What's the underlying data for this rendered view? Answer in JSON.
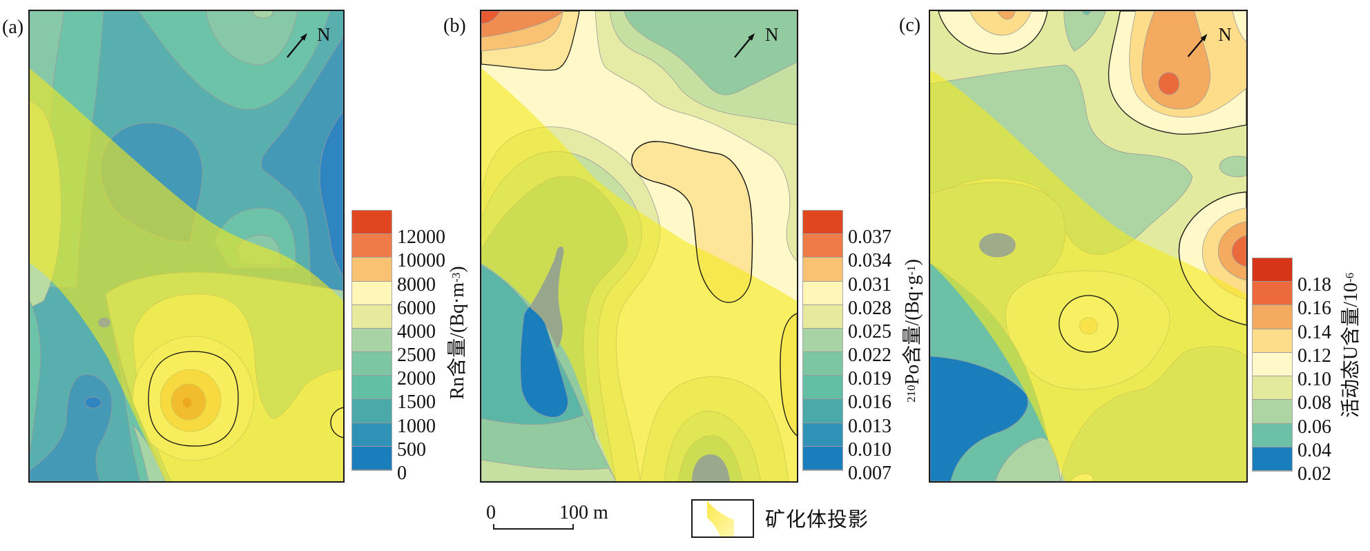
{
  "panels": [
    {
      "id": "a",
      "label": "(a)",
      "north": "N",
      "legend": {
        "title": {
          "main": "Rn含量/(Bq·m",
          "sup": "-3",
          "post": ")"
        },
        "levels": [
          "12000",
          "10000",
          "8000",
          "6000",
          "4000",
          "2500",
          "2000",
          "1500",
          "1000",
          "500",
          "0"
        ],
        "colors": [
          "#e04720",
          "#ee7b48",
          "#f9c272",
          "#fff6b8",
          "#e7ea9c",
          "#a7d3a5",
          "#7cc6a3",
          "#63bfa3",
          "#4ba9aa",
          "#3092b7",
          "#1a7ebc"
        ]
      }
    },
    {
      "id": "b",
      "label": "(b)",
      "north": "N",
      "legend": {
        "title": {
          "pre_sup": "210",
          "main": "Po含量/(Bq·g",
          "sup": "-1",
          "post": ")"
        },
        "levels": [
          "0.037",
          "0.034",
          "0.031",
          "0.028",
          "0.025",
          "0.022",
          "0.019",
          "0.016",
          "0.013",
          "0.010",
          "0.007"
        ],
        "colors": [
          "#e04720",
          "#ee7b48",
          "#f9c272",
          "#fff6b8",
          "#e7ea9c",
          "#a7d3a5",
          "#7cc6a3",
          "#63bfa3",
          "#4ba9aa",
          "#3092b7",
          "#1a7ebc"
        ]
      }
    },
    {
      "id": "c",
      "label": "(c)",
      "north": "N",
      "legend": {
        "title": {
          "main": "活动态U含量/10",
          "sup": "-6"
        },
        "levels": [
          "0.18",
          "0.16",
          "0.14",
          "0.12",
          "0.10",
          "0.08",
          "0.06",
          "0.04",
          "0.02"
        ],
        "colors": [
          "#d73518",
          "#ec6a3c",
          "#f4aa5f",
          "#fedd8a",
          "#fff8c9",
          "#e3ea9c",
          "#acd5a3",
          "#6bc0a5",
          "#1a7ebc"
        ]
      }
    }
  ],
  "scale_bar": {
    "start": "0",
    "end": "100 m"
  },
  "ore_legend": {
    "label": "矿化体投影",
    "color": "#f4ea20"
  }
}
